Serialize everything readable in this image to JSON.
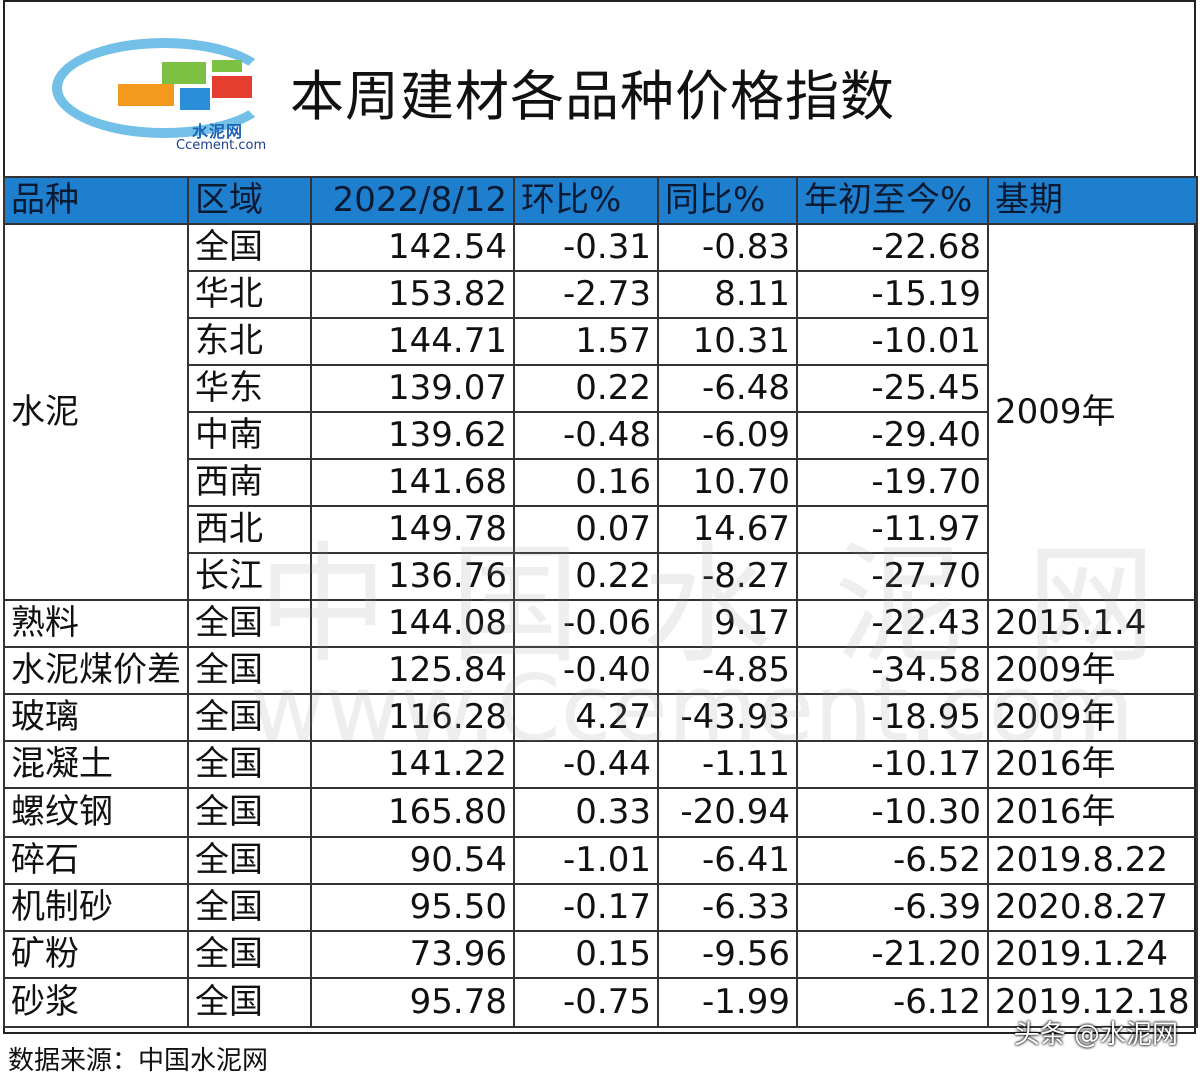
{
  "header": {
    "title": "本周建材各品种价格指数",
    "logo_cn": "水泥网",
    "logo_en": "Ccement.com",
    "logo_colors": [
      "#f39a1e",
      "#e84e25",
      "#7cc142",
      "#2a8fd8",
      "#e53d2f",
      "#5ab6e4"
    ]
  },
  "table": {
    "columns": [
      "品种",
      "区域",
      "2022/8/12",
      "环比%",
      "同比%",
      "年初至今%",
      "基期"
    ],
    "header_color": "#1f7fcf",
    "cement_group": {
      "category": "水泥",
      "base": "2009年",
      "rows": [
        {
          "region": "全国",
          "index": "142.54",
          "mom": "-0.31",
          "yoy": "-0.83",
          "ytd": "-22.68"
        },
        {
          "region": "华北",
          "index": "153.82",
          "mom": "-2.73",
          "yoy": "8.11",
          "ytd": "-15.19"
        },
        {
          "region": "东北",
          "index": "144.71",
          "mom": "1.57",
          "yoy": "10.31",
          "ytd": "-10.01"
        },
        {
          "region": "华东",
          "index": "139.07",
          "mom": "0.22",
          "yoy": "-6.48",
          "ytd": "-25.45"
        },
        {
          "region": "中南",
          "index": "139.62",
          "mom": "-0.48",
          "yoy": "-6.09",
          "ytd": "-29.40"
        },
        {
          "region": "西南",
          "index": "141.68",
          "mom": "0.16",
          "yoy": "10.70",
          "ytd": "-19.70"
        },
        {
          "region": "西北",
          "index": "149.78",
          "mom": "0.07",
          "yoy": "14.67",
          "ytd": "-11.97"
        },
        {
          "region": "长江",
          "index": "136.76",
          "mom": "0.22",
          "yoy": "-8.27",
          "ytd": "-27.70"
        }
      ]
    },
    "other_rows": [
      {
        "category": "熟料",
        "region": "全国",
        "index": "144.08",
        "mom": "-0.06",
        "yoy": "9.17",
        "ytd": "-22.43",
        "base": "2015.1.4"
      },
      {
        "category": "水泥煤价差",
        "region": "全国",
        "index": "125.84",
        "mom": "-0.40",
        "yoy": "-4.85",
        "ytd": "-34.58",
        "base": "2009年"
      },
      {
        "category": "玻璃",
        "region": "全国",
        "index": "116.28",
        "mom": "4.27",
        "yoy": "-43.93",
        "ytd": "-18.95",
        "base": "2009年"
      },
      {
        "category": "混凝土",
        "region": "全国",
        "index": "141.22",
        "mom": "-0.44",
        "yoy": "-1.11",
        "ytd": "-10.17",
        "base": "2016年"
      },
      {
        "category": "螺纹钢",
        "region": "全国",
        "index": "165.80",
        "mom": "0.33",
        "yoy": "-20.94",
        "ytd": "-10.30",
        "base": "2016年"
      },
      {
        "category": "碎石",
        "region": "全国",
        "index": "90.54",
        "mom": "-1.01",
        "yoy": "-6.41",
        "ytd": "-6.52",
        "base": "2019.8.22"
      },
      {
        "category": "机制砂",
        "region": "全国",
        "index": "95.50",
        "mom": "-0.17",
        "yoy": "-6.33",
        "ytd": "-6.39",
        "base": "2020.8.27"
      },
      {
        "category": "矿粉",
        "region": "全国",
        "index": "73.96",
        "mom": "0.15",
        "yoy": "-9.56",
        "ytd": "-21.20",
        "base": "2019.1.24"
      },
      {
        "category": "砂浆",
        "region": "全国",
        "index": "95.78",
        "mom": "-0.75",
        "yoy": "-1.99",
        "ytd": "-6.12",
        "base": "2019.12.18"
      }
    ]
  },
  "footer": {
    "source": "数据来源：中国水泥网",
    "credit": "头条 @水泥网",
    "watermark_cn": "中国水泥网",
    "watermark_en": "www.Ccement.com"
  }
}
